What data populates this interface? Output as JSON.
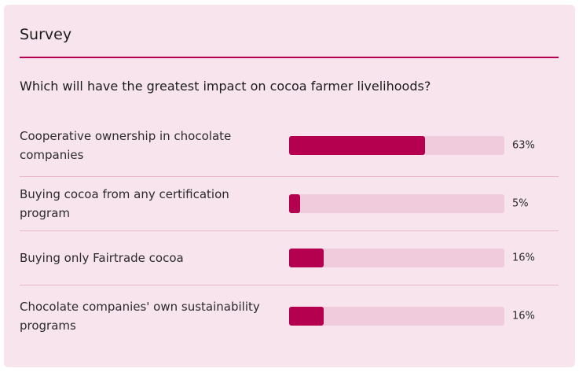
{
  "survey": {
    "title": "Survey",
    "question": "Which will have the greatest impact on cocoa farmer livelihoods?",
    "accent_color": "#b5004f",
    "bar_track_color": "#f0cbdb",
    "card_background": "#f8e4ec",
    "options": [
      {
        "label": "Cooperative ownership in chocolate companies",
        "percent_label": "63%",
        "fraction": 0.63
      },
      {
        "label": "Buying cocoa from any certification program",
        "percent_label": "5%",
        "fraction": 0.05
      },
      {
        "label": "Buying only Fairtrade cocoa",
        "percent_label": "16%",
        "fraction": 0.16
      },
      {
        "label": "Chocolate companies' own sustainability programs",
        "percent_label": "16%",
        "fraction": 0.16
      }
    ]
  }
}
